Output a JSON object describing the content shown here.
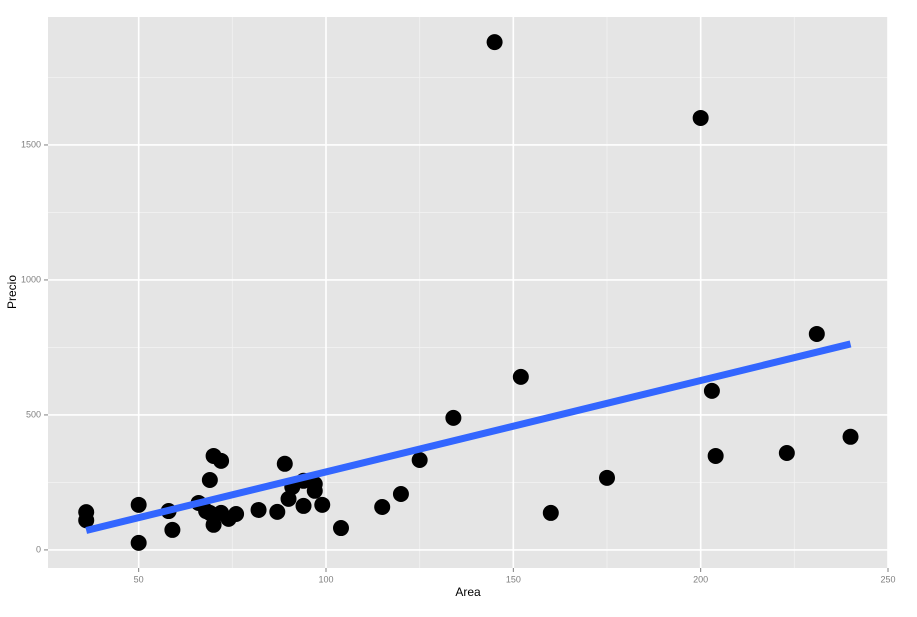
{
  "chart_data": {
    "type": "scatter",
    "x_label": "Area",
    "y_label": "Precio",
    "x": [
      36,
      36,
      50,
      50,
      58,
      59,
      66,
      68,
      69,
      70,
      72,
      70,
      69,
      72,
      74,
      76,
      82,
      87,
      89,
      90,
      91,
      94,
      94,
      97,
      97,
      99,
      104,
      115,
      120,
      125,
      134,
      145,
      152,
      160,
      175,
      200,
      203,
      204,
      223,
      231,
      240
    ],
    "values": [
      140,
      110,
      167,
      26,
      144,
      74,
      174,
      144,
      259,
      348,
      330,
      93,
      137,
      137,
      115,
      133,
      148,
      141,
      319,
      189,
      233,
      256,
      163,
      244,
      219,
      167,
      81,
      159,
      207,
      333,
      489,
      1881,
      641,
      137,
      267,
      1600,
      589,
      348,
      359,
      800,
      419
    ],
    "color": "#000000",
    "fit": {
      "x": [
        36,
        240
      ],
      "values": [
        72,
        763
      ],
      "color": "#3366ff"
    },
    "xlim": [
      25.8,
      250
    ],
    "ylim": [
      -67,
      1974
    ],
    "xticks": [
      50,
      100,
      150,
      200,
      250
    ],
    "yticks": [
      0,
      500,
      1000,
      1500
    ],
    "grid": true
  }
}
